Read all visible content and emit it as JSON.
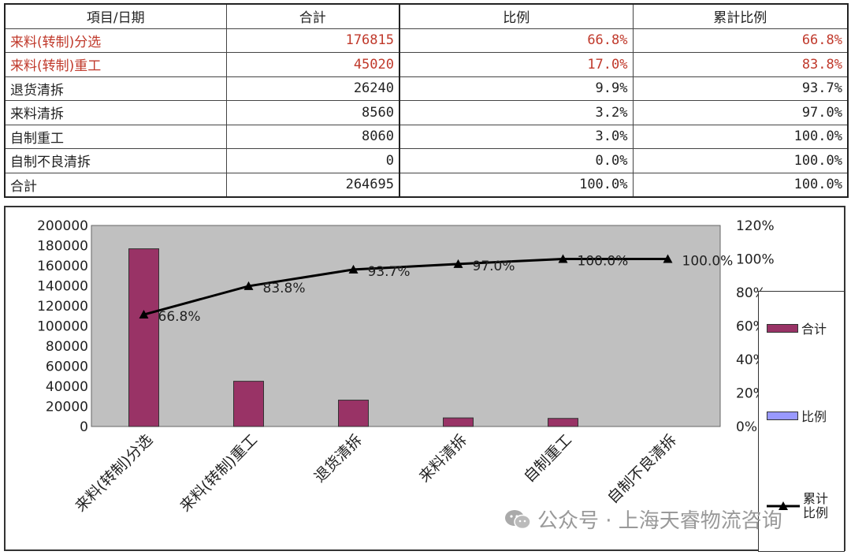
{
  "table": {
    "headers": [
      "項目/日期",
      "合計",
      "比例",
      "累計比例"
    ],
    "rows": [
      {
        "name": "来料(转制)分选",
        "total": "176815",
        "ratio": "66.8%",
        "cum": "66.8%",
        "highlight": true
      },
      {
        "name": "来料(转制)重工",
        "total": "45020",
        "ratio": "17.0%",
        "cum": "83.8%",
        "highlight": true
      },
      {
        "name": "退货清拆",
        "total": "26240",
        "ratio": "9.9%",
        "cum": "93.7%",
        "highlight": false
      },
      {
        "name": "来料清拆",
        "total": "8560",
        "ratio": "3.2%",
        "cum": "97.0%",
        "highlight": false
      },
      {
        "name": "自制重工",
        "total": "8060",
        "ratio": "3.0%",
        "cum": "100.0%",
        "highlight": false
      },
      {
        "name": "自制不良清拆",
        "total": "0",
        "ratio": "0.0%",
        "cum": "100.0%",
        "highlight": false
      },
      {
        "name": "合計",
        "total": "264695",
        "ratio": "100.0%",
        "cum": "100.0%",
        "highlight": false
      }
    ],
    "highlight_color": "#c0392b"
  },
  "chart_data": {
    "type": "bar",
    "categories": [
      "来料(转制)分选",
      "来料(转制)重工",
      "退货清拆",
      "来料清拆",
      "自制重工",
      "自制不良清拆"
    ],
    "series": [
      {
        "name": "合计",
        "type": "bar",
        "axis": "left",
        "values": [
          176815,
          45020,
          26240,
          8560,
          8060,
          0
        ],
        "color": "#993366"
      },
      {
        "name": "比例",
        "type": "bar",
        "axis": "right",
        "values": [
          66.8,
          17.0,
          9.9,
          3.2,
          3.0,
          0.0
        ],
        "color": "#9999ff"
      },
      {
        "name": "累计比例",
        "type": "line",
        "axis": "right",
        "values": [
          66.8,
          83.8,
          93.7,
          97.0,
          100.0,
          100.0
        ],
        "color": "#000000"
      }
    ],
    "line_labels": [
      "66.8%",
      "83.8%",
      "93.7%",
      "97.0%",
      "100.0%",
      "100.0%"
    ],
    "yticks_left": [
      "0",
      "20000",
      "40000",
      "60000",
      "80000",
      "100000",
      "120000",
      "140000",
      "160000",
      "180000",
      "200000"
    ],
    "yticks_right": [
      "0%",
      "20%",
      "40%",
      "60%",
      "80%",
      "100%",
      "120%"
    ],
    "ylim_left": [
      0,
      200000
    ],
    "ylim_right": [
      0,
      120
    ],
    "plot_bg": "#c0c0c0",
    "grid": false,
    "legend_position": "right"
  },
  "legend": {
    "items": [
      "合计",
      "比例",
      "累计\n比例"
    ]
  },
  "watermark": {
    "text": "公众号 · 上海天睿物流咨询"
  }
}
